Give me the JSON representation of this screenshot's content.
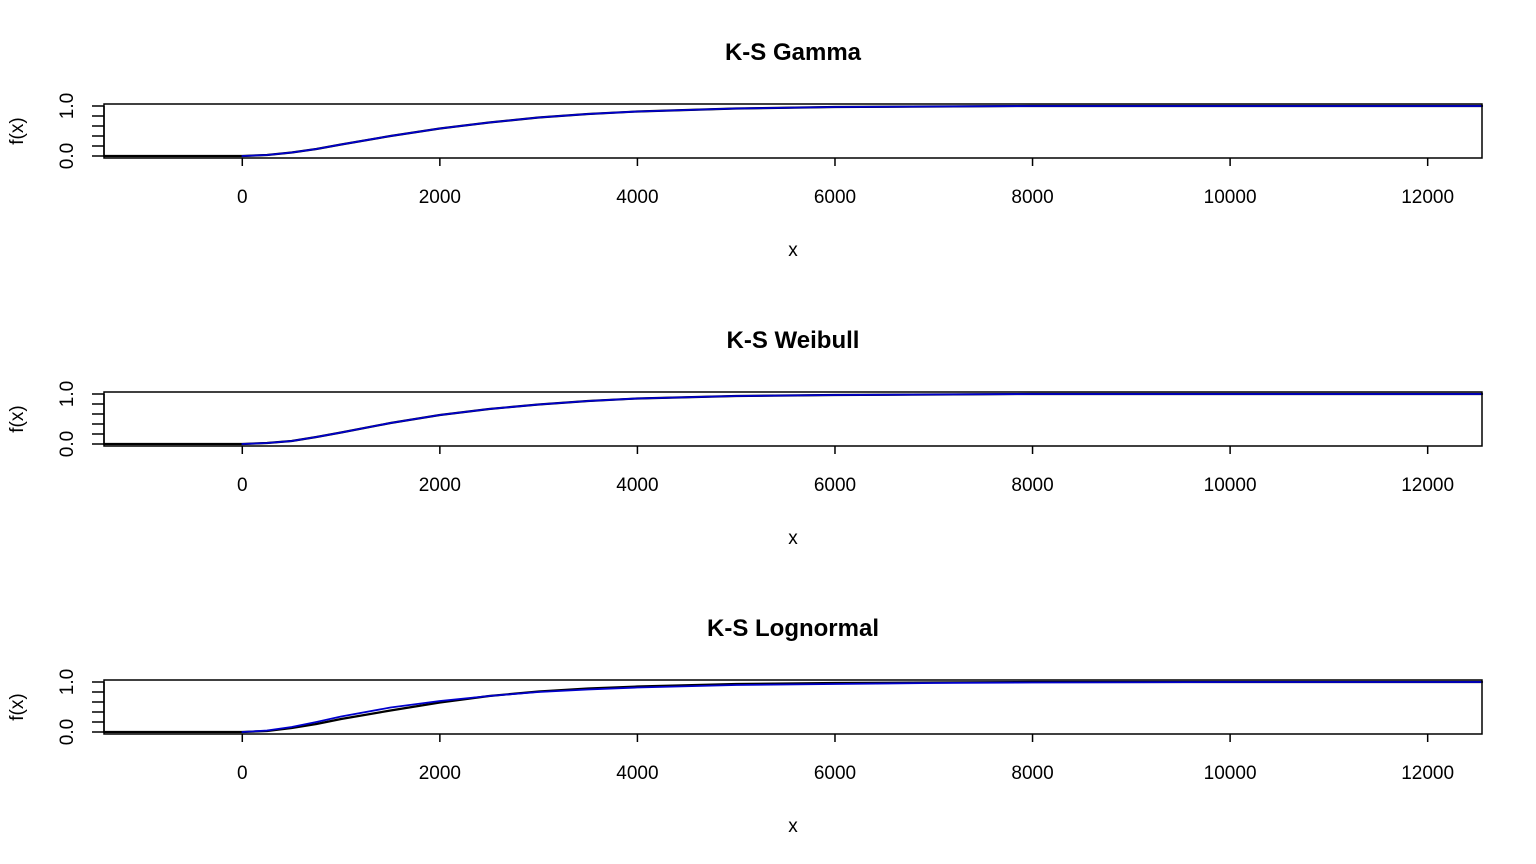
{
  "chart_data": [
    {
      "type": "line",
      "title": "K-S Gamma",
      "xlabel": "x",
      "ylabel": "f(x)",
      "xlim": [
        -1400,
        12550
      ],
      "ylim": [
        -0.04,
        1.04
      ],
      "x_ticks": [
        0,
        2000,
        4000,
        6000,
        8000,
        10000,
        12000
      ],
      "y_ticks": [
        0.0,
        0.2,
        0.4,
        0.6,
        0.8,
        1.0
      ],
      "y_tick_labels": [
        "0.0",
        "1.0"
      ],
      "series": [
        {
          "color": "#000000",
          "x": [
            -1400,
            0,
            250,
            500,
            750,
            1000,
            1500,
            2000,
            2500,
            3000,
            3500,
            4000,
            5000,
            6000,
            7000,
            8000,
            10000,
            12550
          ],
          "y": [
            0,
            0,
            0.02,
            0.07,
            0.14,
            0.23,
            0.4,
            0.55,
            0.67,
            0.77,
            0.84,
            0.89,
            0.95,
            0.98,
            0.99,
            1.0,
            1.0,
            1.0
          ]
        },
        {
          "color": "#0000cc",
          "x": [
            0,
            250,
            500,
            750,
            1000,
            1500,
            2000,
            2500,
            3000,
            3500,
            4000,
            5000,
            6000,
            7000,
            8000,
            10000,
            12550
          ],
          "y": [
            0,
            0.02,
            0.07,
            0.14,
            0.23,
            0.4,
            0.55,
            0.67,
            0.77,
            0.84,
            0.89,
            0.95,
            0.98,
            0.99,
            1.0,
            1.0,
            1.0
          ]
        }
      ]
    },
    {
      "type": "line",
      "title": "K-S Weibull",
      "xlabel": "x",
      "ylabel": "f(x)",
      "xlim": [
        -1400,
        12550
      ],
      "ylim": [
        -0.04,
        1.04
      ],
      "x_ticks": [
        0,
        2000,
        4000,
        6000,
        8000,
        10000,
        12000
      ],
      "y_ticks": [
        0.0,
        0.2,
        0.4,
        0.6,
        0.8,
        1.0
      ],
      "y_tick_labels": [
        "0.0",
        "1.0"
      ],
      "series": [
        {
          "color": "#000000",
          "x": [
            -1400,
            0,
            250,
            500,
            750,
            1000,
            1500,
            2000,
            2500,
            3000,
            3500,
            4000,
            5000,
            6000,
            7000,
            8000,
            10000,
            12550
          ],
          "y": [
            0,
            0,
            0.02,
            0.06,
            0.14,
            0.23,
            0.42,
            0.58,
            0.7,
            0.79,
            0.86,
            0.91,
            0.96,
            0.98,
            0.99,
            1.0,
            1.0,
            1.0
          ]
        },
        {
          "color": "#0000cc",
          "x": [
            0,
            250,
            500,
            750,
            1000,
            1500,
            2000,
            2500,
            3000,
            3500,
            4000,
            5000,
            6000,
            7000,
            8000,
            10000,
            12550
          ],
          "y": [
            0,
            0.02,
            0.06,
            0.14,
            0.23,
            0.42,
            0.58,
            0.7,
            0.79,
            0.86,
            0.91,
            0.96,
            0.98,
            0.99,
            1.0,
            1.0,
            1.0
          ]
        }
      ]
    },
    {
      "type": "line",
      "title": "K-S Lognormal",
      "xlabel": "x",
      "ylabel": "f(x)",
      "xlim": [
        -1400,
        12550
      ],
      "ylim": [
        -0.04,
        1.04
      ],
      "x_ticks": [
        0,
        2000,
        4000,
        6000,
        8000,
        10000,
        12000
      ],
      "y_ticks": [
        0.0,
        0.2,
        0.4,
        0.6,
        0.8,
        1.0
      ],
      "y_tick_labels": [
        "0.0",
        "1.0"
      ],
      "series": [
        {
          "color": "#000000",
          "x": [
            -1400,
            0,
            250,
            500,
            750,
            1000,
            1500,
            2000,
            2500,
            3000,
            3500,
            4000,
            5000,
            6000,
            7000,
            8000,
            10000,
            12550
          ],
          "y": [
            0,
            0,
            0.02,
            0.08,
            0.16,
            0.26,
            0.43,
            0.59,
            0.72,
            0.81,
            0.87,
            0.91,
            0.96,
            0.98,
            0.99,
            1.0,
            1.0,
            1.0
          ]
        },
        {
          "color": "#0000cc",
          "x": [
            0,
            250,
            500,
            750,
            1000,
            1500,
            2000,
            2500,
            3000,
            3500,
            4000,
            5000,
            6000,
            7000,
            8000,
            10000,
            12550
          ],
          "y": [
            0,
            0.03,
            0.1,
            0.2,
            0.31,
            0.49,
            0.62,
            0.72,
            0.8,
            0.85,
            0.89,
            0.94,
            0.96,
            0.98,
            0.99,
            1.0,
            1.0
          ]
        }
      ]
    }
  ]
}
